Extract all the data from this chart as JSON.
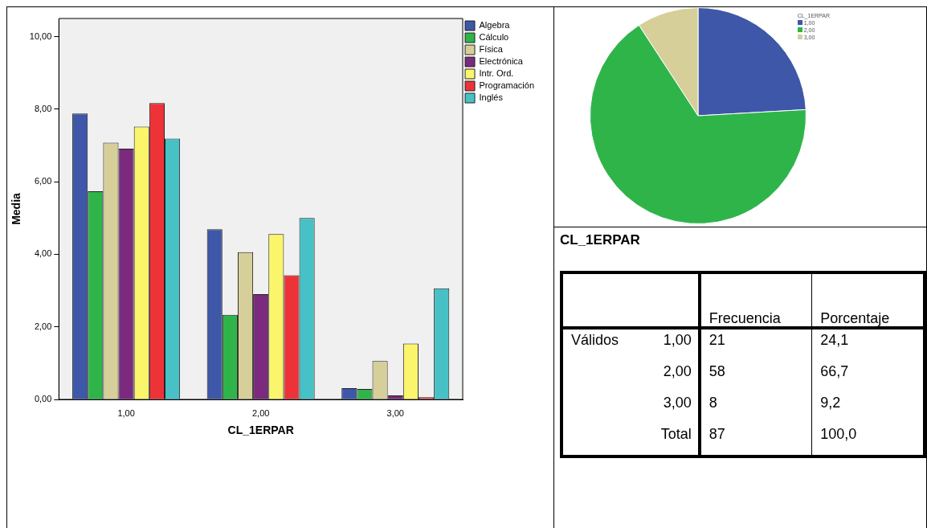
{
  "chart_data": [
    {
      "type": "bar",
      "xlabel": "CL_1ERPAR",
      "ylabel": "Media",
      "categories": [
        "1,00",
        "2,00",
        "3,00"
      ],
      "series": [
        {
          "name": "Algebra",
          "color": "#3e57a8",
          "values": [
            7.88,
            4.69,
            0.31
          ]
        },
        {
          "name": "Cálculo",
          "color": "#2fb44a",
          "values": [
            5.74,
            2.33,
            0.29
          ]
        },
        {
          "name": "Física",
          "color": "#d6cf9a",
          "values": [
            7.08,
            4.06,
            1.06
          ]
        },
        {
          "name": "Electrónica",
          "color": "#7b2a7d",
          "values": [
            6.91,
            2.9,
            0.11
          ]
        },
        {
          "name": "Intr. Ord.",
          "color": "#fbf56c",
          "values": [
            7.52,
            4.56,
            1.54
          ]
        },
        {
          "name": "Programación",
          "color": "#ee3338",
          "values": [
            8.17,
            3.42,
            0.06
          ]
        },
        {
          "name": "Inglés",
          "color": "#48c1c6",
          "values": [
            7.19,
            5.0,
            3.06
          ]
        }
      ],
      "ylim": [
        0,
        10.5
      ],
      "yticks": [
        {
          "value": 0,
          "label": "0,00"
        },
        {
          "value": 2,
          "label": "2,00"
        },
        {
          "value": 4,
          "label": "4,00"
        },
        {
          "value": 6,
          "label": "6,00"
        },
        {
          "value": 8,
          "label": "8,00"
        },
        {
          "value": 10,
          "label": "10,00"
        }
      ],
      "grid": false,
      "legend": "top right"
    },
    {
      "type": "pie",
      "legend_title": "CL_1ERPAR",
      "categories": [
        "1,00",
        "2,00",
        "3,00"
      ],
      "values": [
        24.1,
        66.7,
        9.2
      ],
      "colors": [
        "#3e57a8",
        "#2fb44a",
        "#d6cf9a"
      ],
      "legend": "top right"
    },
    {
      "type": "other",
      "title": "CL_1ERPAR",
      "annotations": [
        null,
        null,
        "Frecuencia",
        "Porcentaje",
        "Válidos",
        "1,00",
        "21",
        "24,1",
        null,
        "2,00",
        "58",
        "66,7",
        null,
        "3,00",
        "8",
        "9,2",
        null,
        "Total",
        "87",
        "100,0"
      ]
    }
  ]
}
